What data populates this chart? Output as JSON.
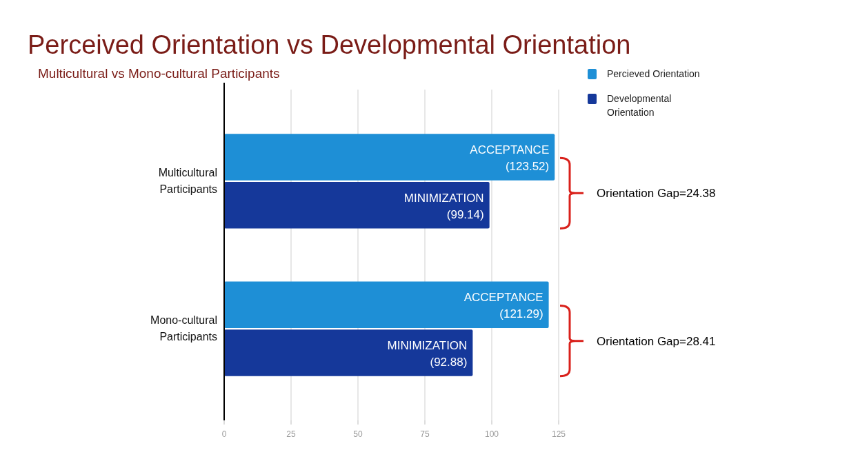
{
  "chart_data": {
    "type": "bar",
    "orientation": "horizontal",
    "title": "Perceived Orientation vs Developmental Orientation",
    "subtitle": "Multicultural vs Mono-cultural Participants",
    "categories": [
      "Multicultural Participants",
      "Mono-cultural Participants"
    ],
    "series": [
      {
        "name": "Percieved Orientation",
        "color": "#1e8fd6",
        "values": [
          123.52,
          121.29
        ],
        "value_labels": [
          "ACCEPTANCE\n(123.52)",
          "ACCEPTANCE\n(121.29)"
        ]
      },
      {
        "name": "Developmental Orientation",
        "color": "#15389a",
        "values": [
          99.14,
          92.88
        ],
        "value_labels": [
          "MINIMIZATION\n(99.14)",
          "MINIMIZATION\n(92.88)"
        ]
      }
    ],
    "xlim": [
      0,
      125
    ],
    "xticks": [
      0,
      25,
      50,
      75,
      100,
      125
    ],
    "grid": "x",
    "legend": "top right",
    "annotations": [
      "Orientation Gap=24.38",
      "Orientation Gap=28.41"
    ]
  }
}
